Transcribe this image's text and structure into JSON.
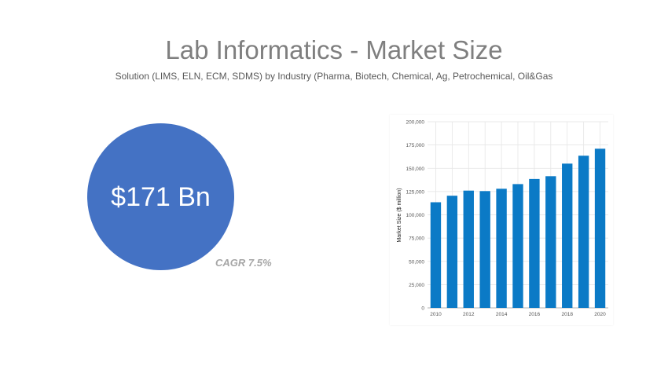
{
  "header": {
    "title": "Lab Informatics - Market Size",
    "subtitle": "Solution (LIMS, ELN, ECM, SDMS) by Industry (Pharma, Biotech, Chemical, Ag, Petrochemical, Oil&Gas"
  },
  "kpi": {
    "value": "$171 Bn",
    "cagr": "CAGR 7.5%",
    "color": "#4472c4"
  },
  "chart_data": {
    "type": "bar",
    "categories": [
      "2010",
      "2011",
      "2012",
      "2013",
      "2014",
      "2015",
      "2016",
      "2017",
      "2018",
      "2019",
      "2020"
    ],
    "x_tick_labels": [
      "2010",
      "",
      "2012",
      "",
      "2014",
      "",
      "2016",
      "",
      "2018",
      "",
      "2020"
    ],
    "series": [
      {
        "values": [
          113500,
          120500,
          126000,
          125500,
          128000,
          133000,
          138500,
          141500,
          155000,
          163500,
          171000
        ]
      }
    ],
    "title": "",
    "xlabel": "",
    "ylabel": "Market Size ($ million)",
    "ylim": [
      0,
      200000
    ],
    "y_ticks": [
      0,
      25000,
      50000,
      75000,
      100000,
      125000,
      150000,
      175000,
      200000
    ],
    "y_tick_labels": [
      "0",
      "25,000",
      "50,000",
      "75,000",
      "100,000",
      "125,000",
      "150,000",
      "175,000",
      "200,000"
    ],
    "bar_color": "#0b7ac6",
    "grid": true,
    "legend": "none"
  }
}
